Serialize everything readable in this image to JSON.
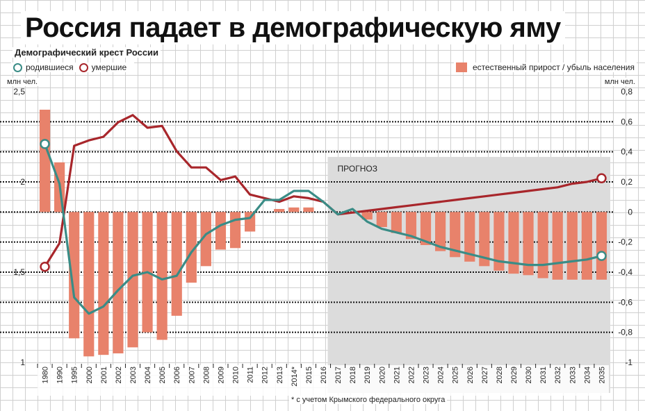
{
  "page": {
    "headline": "Россия падает в демографическую яму",
    "footnote": "* с учетом Крымского федерального округа"
  },
  "chart_data": {
    "type": "bar",
    "title": "Демографический крест России",
    "unit_left": "млн чел.",
    "unit_right": "млн чел.",
    "forecast_label": "ПРОГНОЗ",
    "forecast_from": "2017",
    "legend_placement": "top",
    "categories": [
      "1980",
      "1990",
      "1995",
      "2000",
      "2001",
      "2002",
      "2003",
      "2004",
      "2005",
      "2006",
      "2007",
      "2008",
      "2009",
      "2010",
      "2011",
      "2012",
      "2013",
      "2014*",
      "2015",
      "2016",
      "2017",
      "2018",
      "2019",
      "2020",
      "2021",
      "2022",
      "2023",
      "2024",
      "2025",
      "2026",
      "2027",
      "2028",
      "2029",
      "2030",
      "2031",
      "2032",
      "2033",
      "2034",
      "2035"
    ],
    "y_left": {
      "ylim": [
        1,
        2.5
      ],
      "ticks": [
        "1",
        "1,5",
        "2",
        "2,5"
      ],
      "tick_values": [
        1,
        1.5,
        2,
        2.5
      ]
    },
    "y_right": {
      "ylim": [
        -1,
        0.8
      ],
      "ticks": [
        "-1",
        "-0,8",
        "-0,6",
        "-0,4",
        "-0,2",
        "0",
        "0,2",
        "0,4",
        "0,6",
        "0,8"
      ],
      "tick_values": [
        -1,
        -0.8,
        -0.6,
        -0.4,
        -0.2,
        0,
        0.2,
        0.4,
        0.6,
        0.8
      ]
    },
    "series": [
      {
        "name": "естественный прирост / убыль населения",
        "type": "bar",
        "axis": "right",
        "color": "#e8826b",
        "values": [
          0.68,
          0.33,
          -0.84,
          -0.96,
          -0.95,
          -0.94,
          -0.9,
          -0.8,
          -0.85,
          -0.69,
          -0.47,
          -0.36,
          -0.25,
          -0.24,
          -0.13,
          0.0,
          0.02,
          0.03,
          0.03,
          0.0,
          0.0,
          0.0,
          -0.05,
          -0.1,
          -0.14,
          -0.18,
          -0.22,
          -0.26,
          -0.3,
          -0.33,
          -0.36,
          -0.39,
          -0.41,
          -0.42,
          -0.44,
          -0.45,
          -0.45,
          -0.45,
          -0.45
        ]
      },
      {
        "name": "родившиеся",
        "type": "line",
        "axis": "left",
        "color": "#3a8c86",
        "values": [
          2.21,
          1.99,
          1.36,
          1.27,
          1.31,
          1.4,
          1.48,
          1.5,
          1.46,
          1.48,
          1.61,
          1.71,
          1.76,
          1.79,
          1.8,
          1.9,
          1.9,
          1.95,
          1.95,
          1.89,
          1.82,
          1.85,
          1.78,
          1.74,
          1.72,
          1.7,
          1.67,
          1.64,
          1.62,
          1.6,
          1.58,
          1.56,
          1.55,
          1.54,
          1.54,
          1.55,
          1.56,
          1.57,
          1.59
        ]
      },
      {
        "name": "умершие",
        "type": "line",
        "axis": "left",
        "color": "#a8262b",
        "values": [
          1.53,
          1.66,
          2.2,
          2.23,
          2.25,
          2.33,
          2.37,
          2.3,
          2.31,
          2.17,
          2.08,
          2.08,
          2.01,
          2.03,
          1.93,
          1.91,
          1.89,
          1.92,
          1.91,
          1.89,
          1.82,
          1.83,
          1.84,
          1.85,
          1.86,
          1.87,
          1.88,
          1.89,
          1.9,
          1.91,
          1.92,
          1.93,
          1.94,
          1.95,
          1.96,
          1.97,
          1.99,
          2.0,
          2.02
        ]
      }
    ]
  }
}
